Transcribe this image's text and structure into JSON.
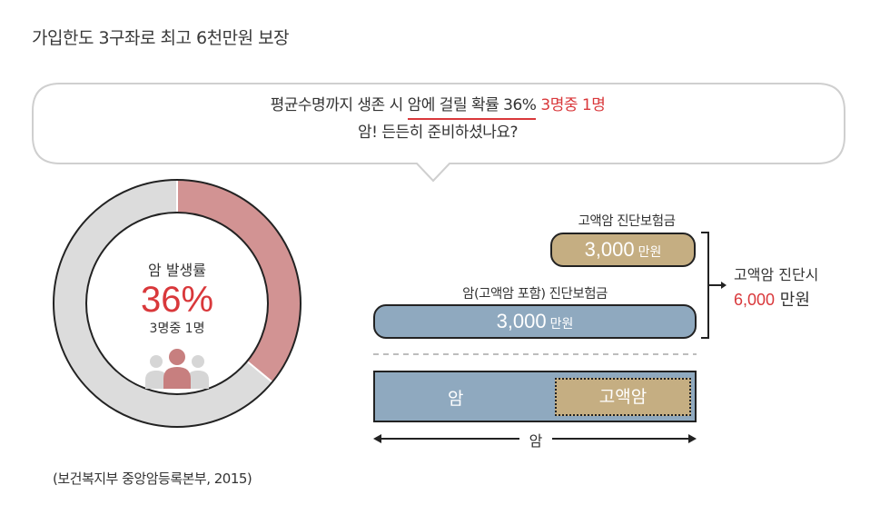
{
  "title": "가입한도 3구좌로 최고 6천만원 보장",
  "bubble": {
    "line1_prefix": "평균수명까지 생존 시",
    "line1_underlined": "암에 걸릴 확률 36%",
    "line1_highlight": "3명중 1명",
    "line2": "암! 든든히 준비하셨나요?"
  },
  "donut": {
    "label": "암 발생률",
    "percent": "36%",
    "sub": "3명중 1명",
    "icon": "people-group-icon"
  },
  "source": "(보건복지부 중앙암등록본부, 2015)",
  "benefits": {
    "high_grade_label": "고액암 진단보험금",
    "high_grade_amount": "3,000",
    "high_grade_unit": "만원",
    "cancer_label": "암(고액암 포함) 진단보험금",
    "cancer_amount": "3,000",
    "cancer_unit": "만원",
    "total_label": "고액암 진단시",
    "total_amount": "6,000",
    "total_unit": "만원"
  },
  "coverage": {
    "cancer": "암",
    "high_grade": "고액암",
    "axis": "암"
  },
  "chart_data": {
    "type": "pie",
    "categories": [
      "암 발생률",
      ""
    ],
    "values": [
      36,
      64
    ]
  },
  "colors": {
    "accent": "#d9383b",
    "donut_fill": "#d29393",
    "donut_rest": "#dcdcdc",
    "gold": "#c5ae82",
    "steel_blue": "#8fa9bf"
  }
}
